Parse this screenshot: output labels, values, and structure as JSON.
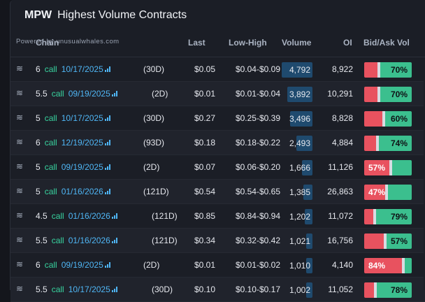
{
  "header": {
    "ticker": "MPW",
    "title": "Highest Volume Contracts"
  },
  "powered_by": "Powered by unusualwhales.com",
  "columns": {
    "chain": "Chain",
    "last": "Last",
    "low_high": "Low-High",
    "volume": "Volume",
    "oi": "OI",
    "bid_ask": "Bid/Ask Vol"
  },
  "icons": {
    "row": "wave-icon",
    "expiry": "bar-chart-icon"
  },
  "colors": {
    "call": "#38d39f",
    "expiry": "#4fb6f5",
    "bid": "#e8525f",
    "ask": "#3bbf8e",
    "volume_bar": "#1f4a6e"
  },
  "max_volume": 4792,
  "rows": [
    {
      "strike": "6",
      "type": "call",
      "expiry": "10/17/2025",
      "dte": "(30D)",
      "last": "$0.05",
      "low_high": "$0.04-$0.09",
      "volume": "4,792",
      "volume_num": 4792,
      "oi": "8,922",
      "bid_pct": 0.3,
      "label": "70%",
      "label_side": "ask"
    },
    {
      "strike": "5.5",
      "type": "call",
      "expiry": "09/19/2025",
      "dte": "(2D)",
      "last": "$0.01",
      "low_high": "$0.01-$0.04",
      "volume": "3,892",
      "volume_num": 3892,
      "oi": "10,291",
      "bid_pct": 0.3,
      "label": "70%",
      "label_side": "ask"
    },
    {
      "strike": "5",
      "type": "call",
      "expiry": "10/17/2025",
      "dte": "(30D)",
      "last": "$0.27",
      "low_high": "$0.25-$0.39",
      "volume": "3,496",
      "volume_num": 3496,
      "oi": "8,828",
      "bid_pct": 0.4,
      "label": "60%",
      "label_side": "ask"
    },
    {
      "strike": "6",
      "type": "call",
      "expiry": "12/19/2025",
      "dte": "(93D)",
      "last": "$0.18",
      "low_high": "$0.18-$0.22",
      "volume": "2,493",
      "volume_num": 2493,
      "oi": "4,884",
      "bid_pct": 0.26,
      "label": "74%",
      "label_side": "ask"
    },
    {
      "strike": "5",
      "type": "call",
      "expiry": "09/19/2025",
      "dte": "(2D)",
      "last": "$0.07",
      "low_high": "$0.06-$0.20",
      "volume": "1,666",
      "volume_num": 1666,
      "oi": "11,126",
      "bid_pct": 0.57,
      "label": "57%",
      "label_side": "bid"
    },
    {
      "strike": "5",
      "type": "call",
      "expiry": "01/16/2026",
      "dte": "(121D)",
      "last": "$0.54",
      "low_high": "$0.54-$0.65",
      "volume": "1,385",
      "volume_num": 1385,
      "oi": "26,863",
      "bid_pct": 0.47,
      "label": "47%",
      "label_side": "bid"
    },
    {
      "strike": "4.5",
      "type": "call",
      "expiry": "01/16/2026",
      "dte": "(121D)",
      "last": "$0.85",
      "low_high": "$0.84-$0.94",
      "volume": "1,202",
      "volume_num": 1202,
      "oi": "11,072",
      "bid_pct": 0.21,
      "label": "79%",
      "label_side": "ask"
    },
    {
      "strike": "5.5",
      "type": "call",
      "expiry": "01/16/2026",
      "dte": "(121D)",
      "last": "$0.34",
      "low_high": "$0.32-$0.42",
      "volume": "1,021",
      "volume_num": 1021,
      "oi": "16,756",
      "bid_pct": 0.43,
      "label": "57%",
      "label_side": "ask"
    },
    {
      "strike": "6",
      "type": "call",
      "expiry": "09/19/2025",
      "dte": "(2D)",
      "last": "$0.01",
      "low_high": "$0.01-$0.02",
      "volume": "1,010",
      "volume_num": 1010,
      "oi": "4,140",
      "bid_pct": 0.84,
      "label": "84%",
      "label_side": "bid"
    },
    {
      "strike": "5.5",
      "type": "call",
      "expiry": "10/17/2025",
      "dte": "(30D)",
      "last": "$0.10",
      "low_high": "$0.10-$0.17",
      "volume": "1,002",
      "volume_num": 1002,
      "oi": "11,052",
      "bid_pct": 0.22,
      "label": "78%",
      "label_side": "ask"
    }
  ]
}
